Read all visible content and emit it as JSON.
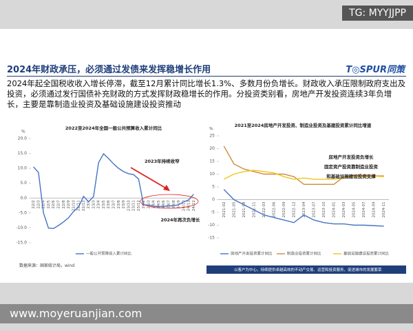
{
  "watermark_top": "TG: MYYJJPP",
  "watermark_bottom": "www.moyeruanjian.com",
  "header": {
    "title": "2024年财政承压，必须通过发债来发挥稳增长作用",
    "logo": "T◎SPUR同策"
  },
  "body_text": "2024年起全国税收收入增长停滞，截至12月累计同比增长1.3%、多数月份负增长。财政收入承压限制政府支出及投资，必须通过发行国债补充财政的方式发挥财政稳增长的作用。分投资类别看，房地产开发投资连续3年负增长，主要是靠制造业投资及基础设施建设投资推动",
  "footer": "以客户为中心，持续提供卓越高效的不动产交易、运营和投资服务，促进城市的发展繁荣",
  "chart_data": [
    {
      "type": "line",
      "title": "2022至2024年全国一般公共预算收入累计同比",
      "y_label": "%",
      "categories": [
        "22/2",
        "22/3",
        "22/4",
        "22/5",
        "22/6",
        "22/7",
        "22/8",
        "22/9",
        "22/10",
        "22/11",
        "22/12",
        "23/2",
        "23/3",
        "23/4",
        "23/5",
        "23/6",
        "23/7",
        "23/8",
        "23/9",
        "23/10",
        "23/11",
        "23/12",
        "24/2",
        "24/3",
        "24/4",
        "24/5",
        "24/6",
        "24/7",
        "24/8",
        "24/9",
        "24/10",
        "24/11",
        "24/12"
      ],
      "series": [
        {
          "name": "一般公共预算收入累计同比",
          "color": "#4472c4",
          "values": [
            10.5,
            8.6,
            -5.0,
            -10.1,
            -10.2,
            -9.2,
            -8.0,
            -6.6,
            -4.5,
            -3.0,
            0.6,
            -1.2,
            0.5,
            11.9,
            14.9,
            13.3,
            11.5,
            10.0,
            8.9,
            8.2,
            7.9,
            6.4,
            -2.3,
            -2.3,
            -2.7,
            -2.8,
            -2.8,
            -2.6,
            -2.6,
            -2.2,
            -1.3,
            -0.6,
            1.3
          ]
        }
      ],
      "ylim": [
        -15,
        20
      ],
      "yticks": [
        {
          "value": 20,
          "label": "20.0"
        },
        {
          "value": 15,
          "label": "15.0"
        },
        {
          "value": 10,
          "label": "10.0"
        },
        {
          "value": 5,
          "label": "5.0"
        },
        {
          "value": 0,
          "label": "0.0"
        },
        {
          "value": -5,
          "label": "-5.0"
        },
        {
          "value": -10,
          "label": "-10.0"
        },
        {
          "value": -15,
          "label": "-15.0"
        }
      ],
      "annotations": [
        "2023年持续收窄",
        "2024年再次负增长"
      ],
      "source": "数据来源：国家统计局，wind"
    },
    {
      "type": "line",
      "title": "2021至2024房地产开发投资、制造业投资及基建投资累计同比增速",
      "y_label": "%",
      "categories": [
        "2021-02",
        "2021-05",
        "2021-08",
        "2021-11",
        "2022-03",
        "2022-06",
        "2022-09",
        "2022-12",
        "2023-04",
        "2023-07",
        "2023-10",
        "2024-01",
        "2024-03",
        "2024-05",
        "2024-07",
        "2024-09",
        "2024-11"
      ],
      "series": [
        {
          "name": "房地产开发投资累计同比",
          "color": "#4472c4",
          "values": [
            4,
            0,
            -2,
            -4,
            -6,
            -7,
            -8,
            -9,
            -6,
            -8,
            -9,
            -9.5,
            -9.5,
            -10,
            -10,
            -10.2,
            -10.4
          ]
        },
        {
          "name": "制造业投资累计同比",
          "color": "#d08a3a",
          "values": [
            21,
            14,
            12,
            11,
            10,
            10,
            10,
            9,
            6,
            6,
            6,
            6,
            9,
            9.5,
            9.5,
            9.3,
            9.3
          ]
        },
        {
          "name": "基础设施建设投资累计同比",
          "color": "#f0c419",
          "values": [
            8,
            10,
            11,
            11.5,
            11,
            10.5,
            9,
            8,
            8.5,
            8,
            8,
            8,
            8.5,
            9,
            9,
            9.2,
            9
          ]
        }
      ],
      "ylim": [
        -15,
        25
      ],
      "yticks": [
        25,
        20,
        15,
        10,
        5,
        0,
        -5,
        -10,
        -15
      ],
      "annotations": [
        "房地产开发投资负增长",
        "固定资产投资靠制造业投资",
        "和基础设施建设投资支撑"
      ]
    }
  ]
}
